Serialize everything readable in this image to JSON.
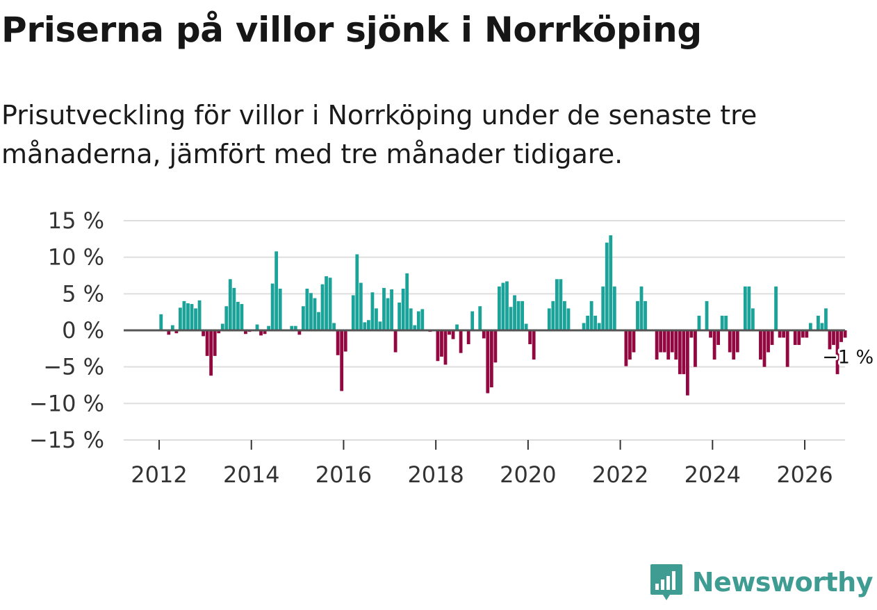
{
  "title": "Priserna på villor sjönk i Norrköping",
  "subtitle": "Prisutveckling för villor i Norrköping under de senaste tre månaderna, jämfört med tre månader tidigare.",
  "brand": {
    "name": "Newsworthy",
    "icon": "newsworthy-logo-icon"
  },
  "colors": {
    "positive": "#1ba39a",
    "negative": "#92073f",
    "zero_line": "#555555",
    "grid": "#dddddd",
    "brand": "#3f9c92"
  },
  "chart_data": {
    "type": "bar",
    "title": "Priserna på villor sjönk i Norrköping",
    "xlabel": "",
    "ylabel": "",
    "x_start": {
      "year": 2012,
      "month": 1
    },
    "frequency": "monthly",
    "x_ticks": [
      "2012",
      "2014",
      "2016",
      "2018",
      "2020",
      "2022",
      "2024",
      "2026"
    ],
    "y_ticks": [
      15,
      10,
      5,
      0,
      -5,
      -10,
      -15
    ],
    "y_tick_labels": [
      "15 %",
      "10 %",
      "5 %",
      "0 %",
      "−5 %",
      "−10 %",
      "−15 %"
    ],
    "ylim": [
      -15,
      15
    ],
    "grid": true,
    "end_label": "−1 %",
    "values": [
      2.2,
      0,
      -0.6,
      0.7,
      -0.4,
      3.1,
      4,
      3.7,
      3.6,
      3,
      4.1,
      -0.8,
      -3.5,
      -6.2,
      -3.5,
      -0.4,
      0.9,
      3.3,
      7,
      5.8,
      3.9,
      3.6,
      -0.5,
      -0.2,
      0,
      0.8,
      -0.7,
      -0.5,
      0.6,
      6.4,
      10.8,
      5.7,
      0,
      0,
      0.6,
      0.6,
      -0.6,
      3.3,
      5.7,
      5.1,
      4.4,
      2.5,
      6.3,
      7.4,
      7.2,
      1,
      -3.4,
      -8.3,
      -2.9,
      0,
      4.8,
      10.4,
      6.5,
      1.1,
      1.4,
      5.2,
      3,
      1.2,
      5.8,
      4.4,
      5.6,
      -3,
      3.8,
      5.7,
      7.8,
      3,
      0.7,
      2.6,
      2.9,
      0.1,
      -0.2,
      0,
      -4.2,
      -3.6,
      -4.7,
      -0.6,
      -1.2,
      0.8,
      -3.1,
      0,
      -1.9,
      2.6,
      0,
      3.3,
      -1.1,
      -8.6,
      -7.8,
      -4.4,
      6,
      6.5,
      6.7,
      3.2,
      4.8,
      4,
      4,
      0.9,
      -1.9,
      -4,
      0,
      0,
      0,
      3,
      4,
      7,
      7,
      4,
      3,
      0,
      0,
      0,
      1,
      2,
      4,
      2,
      1,
      6,
      12,
      13,
      6,
      0,
      0,
      -4.9,
      -4,
      -3,
      4,
      6,
      4,
      0,
      0,
      -4,
      -3,
      -3,
      -4,
      -3,
      -4,
      -6,
      -6,
      -8.9,
      -1,
      -5,
      2,
      0,
      4,
      -1,
      -4,
      -2,
      2,
      2,
      -3,
      -4,
      -3,
      0,
      6,
      6,
      3,
      0,
      -4,
      -5,
      -3,
      -2,
      6,
      -1,
      -1,
      -5,
      0,
      -2,
      -2,
      -1,
      -1,
      1,
      0,
      2,
      1,
      3,
      -2.6,
      -2,
      -6,
      -1.6,
      -1
    ]
  }
}
